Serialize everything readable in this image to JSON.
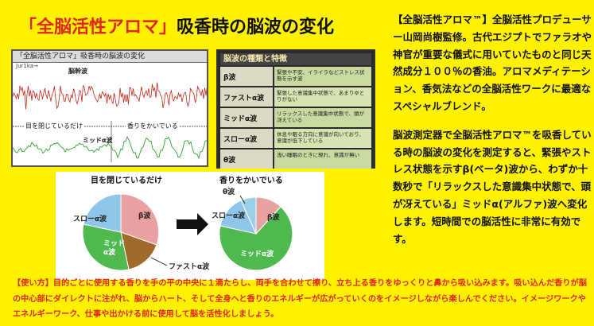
{
  "title": {
    "red": "「全脳活性アロマ」",
    "rest": "吸香時の脳波の変化"
  },
  "eeg": {
    "header": "「全脳活性アロマ」吸香時の脳波の変化",
    "sub": "Jur1ka→",
    "label_top": "脳幹波",
    "label_bottom": "ミッドα波",
    "left_caption": "目を閉じているだけ",
    "right_caption": "香りをかいでいる"
  },
  "wave_table": {
    "header": "脳波の種類と特徴",
    "rows": [
      {
        "name": "β波",
        "desc": "緊張や不安、イライラなどストレス状態を示す波"
      },
      {
        "name": "ファストα波",
        "desc": "緊張した意識集中状態で、あまりゆとりがない"
      },
      {
        "name": "ミッドα波",
        "desc": "リラックスした意識集中状態で、頭が冴えている"
      },
      {
        "name": "スローα波",
        "desc": "休息や眠る方向に意識が向いており、意識が低下している"
      },
      {
        "name": "θ波",
        "desc": "浅い睡眠のときに現れ、意識が無い"
      }
    ]
  },
  "pies": {
    "left_caption": "目を閉じているだけ",
    "right_caption": "香りをかいでいる",
    "left_labels": {
      "slow": "スローα波",
      "beta": "β波",
      "mid": "ミッド\nα波",
      "fast": "ファストα波"
    },
    "right_labels": {
      "theta": "θ波",
      "slow": "スローα波",
      "beta": "β波",
      "mid": "ミッドα波"
    }
  },
  "right_text": {
    "p1": "【全脳活性アロマ™】全脳活性プロデューサー山岡尚樹監修。古代エジプトでファラオや神官が重要な儀式に用いていたものと同じ天然成分１００％の香油。アロマメディテーション、香気法などの全脳活性ワークに最適なスペシャルブレンド。",
    "p2": "脳波測定器で全脳活性アロマ™を吸香している時の脳波の変化を測定すると、緊張やストレス状態を示すβ(ベータ)波から、わずか十数秒で「リラックスした意識集中状態で、頭が冴えている」ミッドα(アルファ)波へ変化します。短時間での脳活性に非常に有効です。"
  },
  "bottom_text": "【使い方】目的ごとに使用する香りを手の平の中央に１滴たらし、両手を合わせて擦り、立ち上る香りをゆっくりと鼻から吸い込みます。吸い込んだ香りが脳の中心部にダイレクトに注がれ、脳からハート、そして全身へと香りのエネルギーが広がっていくのをイメージしながら楽しんでください。イメージワークやエネルギーワーク、仕事や出かける前に使用して脳を活性化しましょう。",
  "colors": {
    "background": "#fff200",
    "accent_red": "#e0261b",
    "beta": "#e8a0a0",
    "mid": "#4fb84f",
    "slow": "#8ec6ea",
    "fast": "#a06a2a",
    "theta": "#9ad0e8"
  }
}
